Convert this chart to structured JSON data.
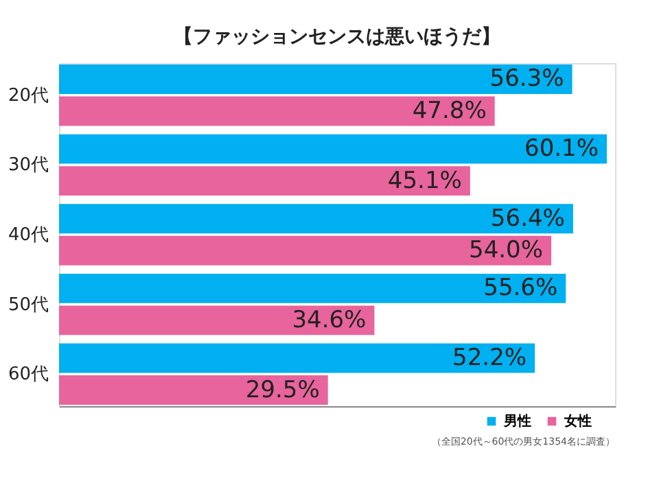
{
  "chart_data": {
    "type": "bar",
    "orientation": "horizontal",
    "title": "【ファッションセンスは悪いほうだ】",
    "categories": [
      "20代",
      "30代",
      "40代",
      "50代",
      "60代"
    ],
    "series": [
      {
        "name": "男性",
        "color": "#00b0f0",
        "values": [
          56.3,
          60.1,
          56.4,
          55.6,
          52.2
        ],
        "value_labels": [
          "56.3%",
          "60.1%",
          "56.4%",
          "55.6%",
          "52.2%"
        ]
      },
      {
        "name": "女性",
        "color": "#e8649c",
        "values": [
          47.8,
          45.1,
          54.0,
          34.6,
          29.5
        ],
        "value_labels": [
          "47.8%",
          "45.1%",
          "54.0%",
          "34.6%",
          "29.5%"
        ]
      }
    ],
    "legend": "bottom right",
    "grid": false,
    "annotations": [
      "（全国20代～60代の男女1354名に調査）"
    ]
  }
}
